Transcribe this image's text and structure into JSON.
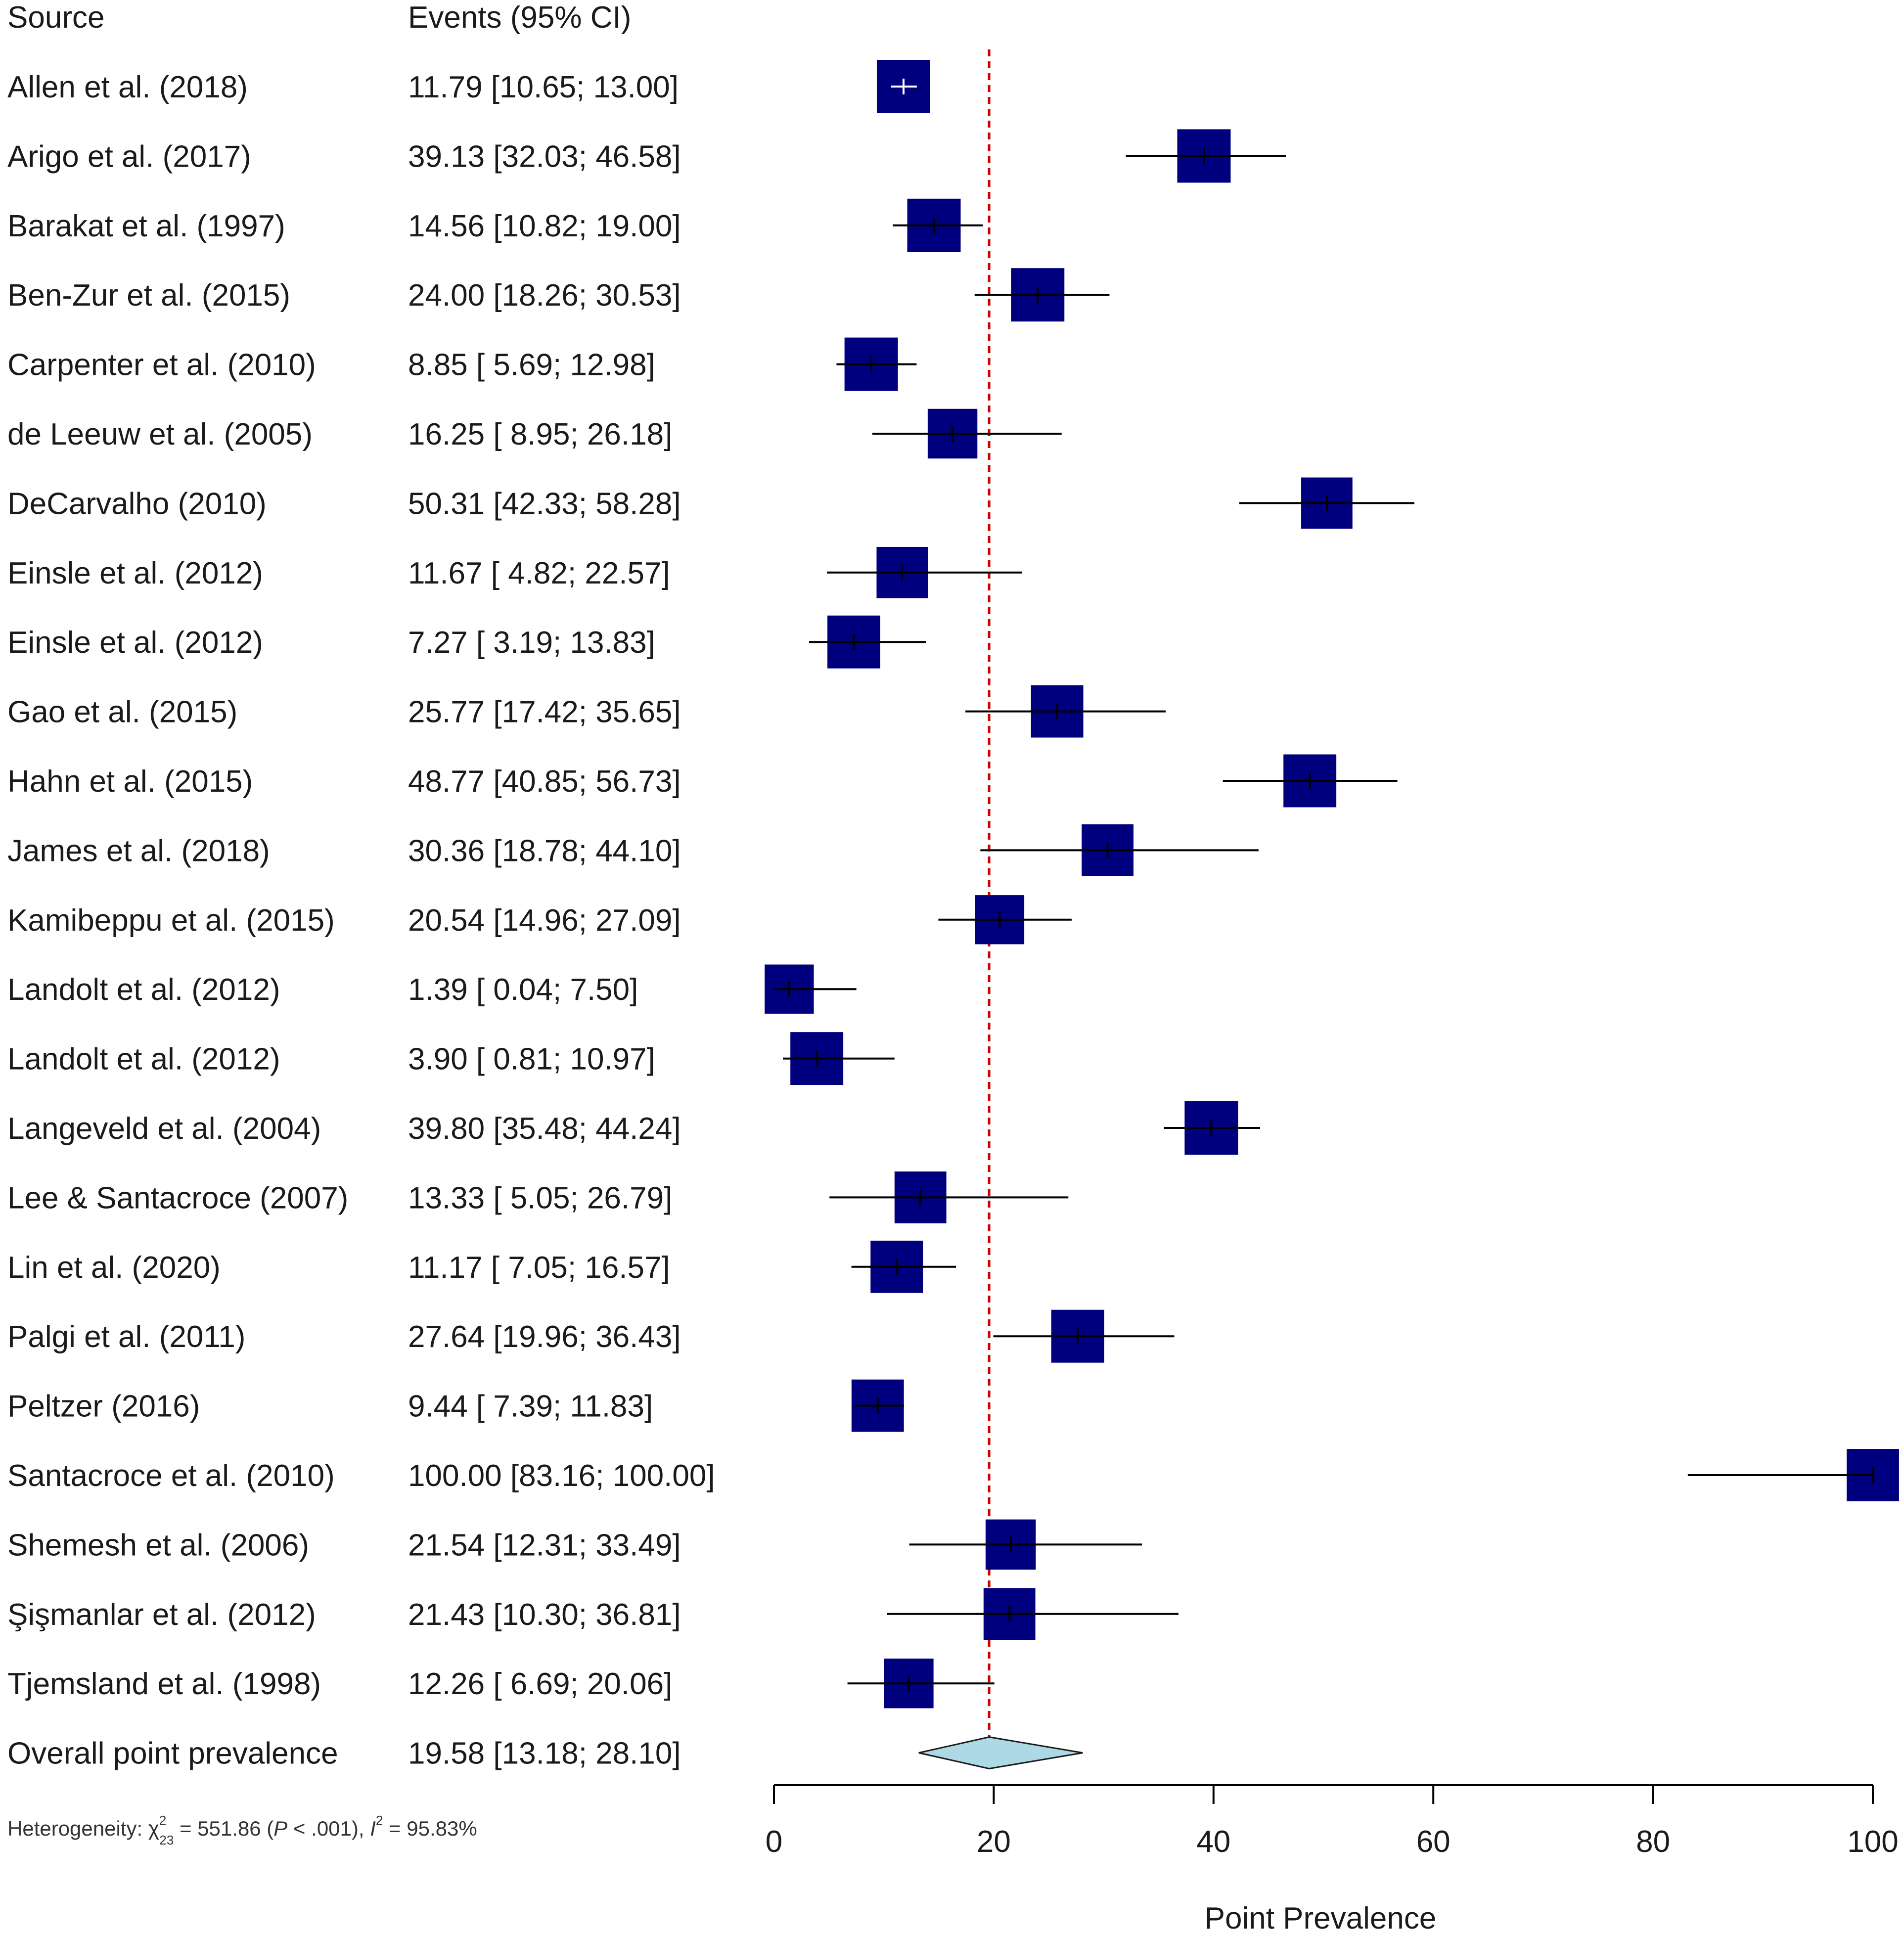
{
  "chart_data": {
    "type": "forest",
    "columns": {
      "source": "Source",
      "events": "Events (95% CI)"
    },
    "xlabel": "Point Prevalence",
    "xlim": [
      0,
      100
    ],
    "xticks": [
      "0",
      "20",
      "40",
      "60",
      "80",
      "100"
    ],
    "reference_line": 19.58,
    "studies": [
      {
        "label": "Allen et al. (2018)",
        "text": "11.79 [10.65;  13.00]",
        "est": 11.79,
        "lo": 10.65,
        "hi": 13.0,
        "weight": 1.0
      },
      {
        "label": "Arigo et al. (2017)",
        "text": "39.13 [32.03;  46.58]",
        "est": 39.13,
        "lo": 32.03,
        "hi": 46.58,
        "weight": 1.0
      },
      {
        "label": "Barakat et al. (1997)",
        "text": "14.56 [10.82;  19.00]",
        "est": 14.56,
        "lo": 10.82,
        "hi": 19.0,
        "weight": 1.0
      },
      {
        "label": "Ben-Zur et al. (2015)",
        "text": "24.00 [18.26;  30.53]",
        "est": 24.0,
        "lo": 18.26,
        "hi": 30.53,
        "weight": 1.0
      },
      {
        "label": "Carpenter et al. (2010)",
        "text": "8.85 [ 5.69;  12.98]",
        "est": 8.85,
        "lo": 5.69,
        "hi": 12.98,
        "weight": 1.0
      },
      {
        "label": "de Leeuw et al. (2005)",
        "text": "16.25 [ 8.95;  26.18]",
        "est": 16.25,
        "lo": 8.95,
        "hi": 26.18,
        "weight": 0.93
      },
      {
        "label": "DeCarvalho (2010)",
        "text": "50.31 [42.33;  58.28]",
        "est": 50.31,
        "lo": 42.33,
        "hi": 58.28,
        "weight": 0.96
      },
      {
        "label": "Einsle et al. (2012)",
        "text": "11.67 [ 4.82;  22.57]",
        "est": 11.67,
        "lo": 4.82,
        "hi": 22.57,
        "weight": 0.96
      },
      {
        "label": "Einsle et al. (2012)",
        "text": "7.27 [ 3.19;  13.83]",
        "est": 7.27,
        "lo": 3.19,
        "hi": 13.83,
        "weight": 0.99
      },
      {
        "label": "Gao et al. (2015)",
        "text": "25.77 [17.42;  35.65]",
        "est": 25.77,
        "lo": 17.42,
        "hi": 35.65,
        "weight": 0.98
      },
      {
        "label": "Hahn et al. (2015)",
        "text": "48.77 [40.85;  56.73]",
        "est": 48.77,
        "lo": 40.85,
        "hi": 56.73,
        "weight": 0.99
      },
      {
        "label": "James et al. (2018)",
        "text": "30.36 [18.78;  44.10]",
        "est": 30.36,
        "lo": 18.78,
        "hi": 44.1,
        "weight": 0.97
      },
      {
        "label": "Kamibeppu et al. (2015)",
        "text": "20.54 [14.96;  27.09]",
        "est": 20.54,
        "lo": 14.96,
        "hi": 27.09,
        "weight": 0.92
      },
      {
        "label": "Landolt et al. (2012)",
        "text": "1.39 [ 0.04;    7.50]",
        "est": 1.39,
        "lo": 0.04,
        "hi": 7.5,
        "weight": 0.92
      },
      {
        "label": "Landolt et al. (2012)",
        "text": "3.90 [ 0.81;  10.97]",
        "est": 3.9,
        "lo": 0.81,
        "hi": 10.97,
        "weight": 0.99
      },
      {
        "label": "Langeveld et al. (2004)",
        "text": "39.80 [35.48;  44.24]",
        "est": 39.8,
        "lo": 35.48,
        "hi": 44.24,
        "weight": 1.0
      },
      {
        "label": "Lee & Santacroce (2007)",
        "text": "13.33 [ 5.05;  26.79]",
        "est": 13.33,
        "lo": 5.05,
        "hi": 26.79,
        "weight": 0.97
      },
      {
        "label": "Lin et al. (2020)",
        "text": "11.17 [ 7.05;  16.57]",
        "est": 11.17,
        "lo": 7.05,
        "hi": 16.57,
        "weight": 0.98
      },
      {
        "label": "Palgi et al. (2011)",
        "text": "27.64 [19.96;  36.43]",
        "est": 27.64,
        "lo": 19.96,
        "hi": 36.43,
        "weight": 0.99
      },
      {
        "label": "Peltzer (2016)",
        "text": "9.44 [ 7.39;  11.83]",
        "est": 9.44,
        "lo": 7.39,
        "hi": 11.83,
        "weight": 0.98
      },
      {
        "label": "Santacroce et al. (2010)",
        "text": "100.00 [83.16; 100.00]",
        "est": 100.0,
        "lo": 83.16,
        "hi": 100.0,
        "weight": 0.98
      },
      {
        "label": "Shemesh et al. (2006)",
        "text": "21.54 [12.31;  33.49]",
        "est": 21.54,
        "lo": 12.31,
        "hi": 33.49,
        "weight": 0.94
      },
      {
        "label": "Şişmanlar et al. (2012)",
        "text": "21.43 [10.30;  36.81]",
        "est": 21.43,
        "lo": 10.3,
        "hi": 36.81,
        "weight": 0.97
      },
      {
        "label": "Tjemsland et al. (1998)",
        "text": "12.26 [ 6.69;  20.06]",
        "est": 12.26,
        "lo": 6.69,
        "hi": 20.06,
        "weight": 0.93
      }
    ],
    "overall": {
      "label": "Overall point prevalence",
      "text": "19.58 [13.18;  28.10]",
      "est": 19.58,
      "lo": 13.18,
      "hi": 28.1
    },
    "heterogeneity": {
      "prefix": "Heterogeneity: ",
      "chi": "χ",
      "chi_sup": "2",
      "chi_sub": "23",
      "mid": " = 551.86 (",
      "p": "P",
      "p_rest": " < .001), ",
      "i": "I",
      "i_sup": "2",
      "i_rest": " = 95.83%"
    },
    "colors": {
      "square": "#00007f",
      "diamond": "#add8e6",
      "refline": "#cc0000",
      "ci": "#000000"
    }
  }
}
